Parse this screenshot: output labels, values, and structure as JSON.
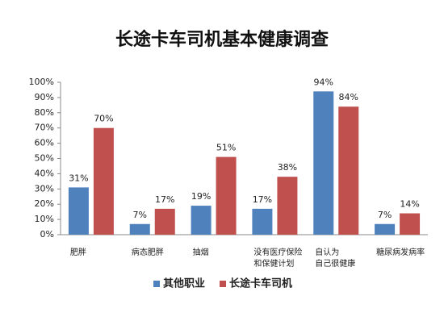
{
  "chart_data": {
    "type": "bar",
    "title": "长途卡车司机基本健康调查",
    "categories": [
      "肥胖",
      "病态肥胖",
      "抽烟",
      "没有医疗保险\n和保健计划",
      "自认为\n自己很健康",
      "糖尿病发病率"
    ],
    "series": [
      {
        "name": "其他职业",
        "color": "#4f81bd",
        "values": [
          31,
          7,
          19,
          17,
          94,
          7
        ],
        "value_labels": [
          "31%",
          "7%",
          "19%",
          "17%",
          "94%",
          "7%"
        ]
      },
      {
        "name": "长途卡车司机",
        "color": "#c0504d",
        "values": [
          70,
          17,
          51,
          38,
          84,
          14
        ],
        "value_labels": [
          "70%",
          "17%",
          "51%",
          "38%",
          "84%",
          "14%"
        ]
      }
    ],
    "ylim": [
      0,
      100
    ],
    "yticks": [
      {
        "value": 0,
        "label": "0%"
      },
      {
        "value": 10,
        "label": "10%"
      },
      {
        "value": 20,
        "label": "20%"
      },
      {
        "value": 30,
        "label": "30%"
      },
      {
        "value": 40,
        "label": "40%"
      },
      {
        "value": 50,
        "label": "50%"
      },
      {
        "value": 60,
        "label": "60%"
      },
      {
        "value": 70,
        "label": "70%"
      },
      {
        "value": 80,
        "label": "80%"
      },
      {
        "value": 90,
        "label": "90%"
      },
      {
        "value": 100,
        "label": "100%"
      }
    ],
    "grid": false,
    "legend": "bottom"
  }
}
